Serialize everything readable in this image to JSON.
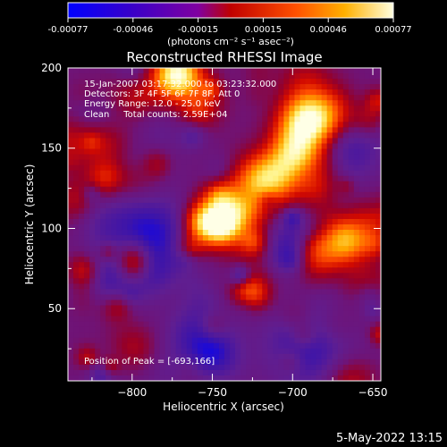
{
  "colorbar": {
    "tick_labels": [
      "-0.00077",
      "-0.00046",
      "-0.00015",
      "0.00015",
      "0.00046",
      "0.00077"
    ],
    "unit_label": "(photons cm⁻² s⁻¹ asec⁻²)",
    "range": [
      -0.00077,
      0.00077
    ]
  },
  "chart_data": {
    "type": "heatmap",
    "title": "Reconstructed RHESSI Image",
    "xlabel": "Heliocentric X (arcsec)",
    "ylabel": "Heliocentric Y (arcsec)",
    "xlim": [
      -840,
      -645
    ],
    "ylim": [
      5,
      200
    ],
    "x_ticks": [
      -800,
      -750,
      -700,
      -650
    ],
    "y_ticks": [
      50,
      100,
      150,
      200
    ],
    "x_tick_labels": [
      "−800",
      "−750",
      "−700",
      "−650"
    ],
    "y_tick_labels": [
      "50",
      "100",
      "150",
      "200"
    ],
    "annotations": [
      "15-Jan-2007 03:17:32.000 to 03:23:32.000",
      "Detectors: 3F 4F 5F 6F 7F 8F, Att 0",
      "Energy Range: 12.0 - 25.0 keV",
      "Clean     Total counts: 2.59E+04"
    ],
    "peak_label": "Position of Peak = [-693,166]",
    "peak": [
      -693,
      166
    ]
  },
  "footer": {
    "date": "5-May-2022 13:15"
  }
}
